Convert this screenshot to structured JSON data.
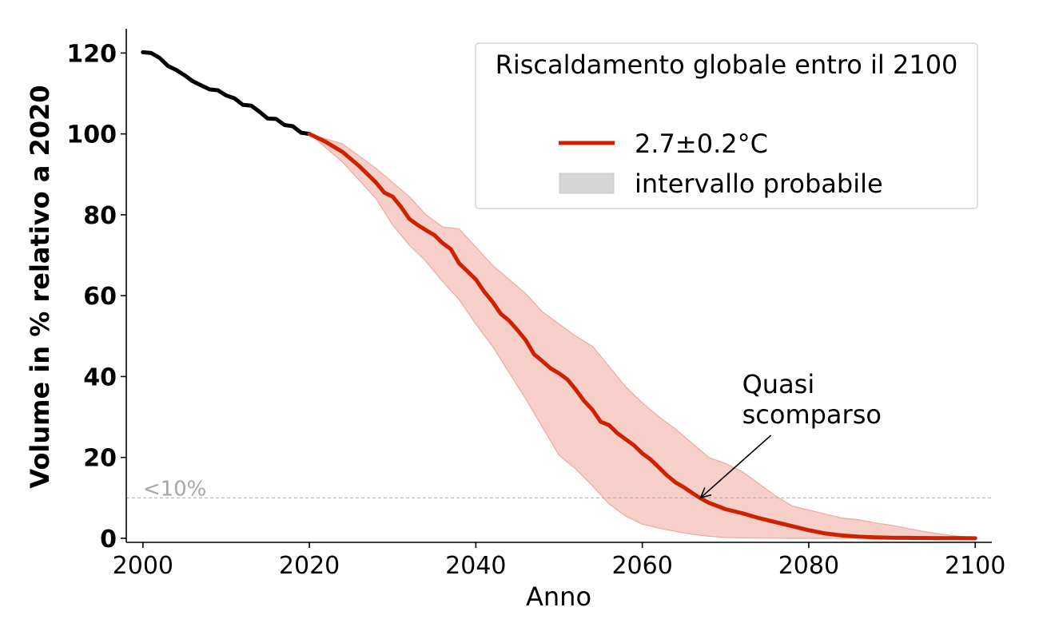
{
  "chart_data": {
    "type": "line",
    "xlabel": "Anno",
    "ylabel": "Volume in % relativo a 2020",
    "xlim": [
      1998,
      2102
    ],
    "ylim": [
      -1,
      126
    ],
    "xticks": [
      2000,
      2020,
      2040,
      2060,
      2080,
      2100
    ],
    "yticks": [
      0,
      20,
      40,
      60,
      80,
      100,
      120
    ],
    "grid": false,
    "legend": {
      "title": "Riscaldamento globale entro il 2100",
      "position": "top-right",
      "entries": [
        {
          "label": "2.7±0.2°C",
          "kind": "line",
          "color": "#cc2200"
        },
        {
          "label": "intervallo probabile",
          "kind": "patch",
          "color": "#d6d6d6"
        }
      ]
    },
    "reference_line": {
      "y": 10,
      "label": "<10%",
      "color": "#b3b3b3"
    },
    "annotation": {
      "text_lines": [
        "Quasi",
        "scomparso"
      ],
      "point": [
        2067,
        10
      ],
      "text_at": [
        2072,
        31
      ]
    },
    "series": [
      {
        "name": "historical",
        "color": "#000000",
        "x": [
          2000,
          2001,
          2002,
          2003,
          2004,
          2005,
          2006,
          2007,
          2008,
          2009,
          2010,
          2011,
          2012,
          2013,
          2014,
          2015,
          2016,
          2017,
          2018,
          2019,
          2020
        ],
        "values": [
          120.2,
          120,
          118.8,
          116.8,
          115.8,
          114.5,
          113,
          112,
          111,
          110.8,
          109.5,
          108.8,
          107.2,
          107,
          105.5,
          103.8,
          103.7,
          102.2,
          101.9,
          100.3,
          100
        ]
      },
      {
        "name": "2.7±0.2°C",
        "color": "#cc2200",
        "x": [
          2020,
          2022,
          2024,
          2026,
          2028,
          2029,
          2030,
          2031,
          2032,
          2033,
          2034,
          2035,
          2036,
          2037,
          2038,
          2039,
          2040,
          2041,
          2042,
          2043,
          2044,
          2045,
          2046,
          2047,
          2048,
          2049,
          2050,
          2051,
          2052,
          2053,
          2054,
          2055,
          2056,
          2057,
          2058,
          2059,
          2060,
          2061,
          2062,
          2063,
          2064,
          2065,
          2066,
          2067,
          2068,
          2070,
          2072,
          2074,
          2076,
          2078,
          2080,
          2082,
          2084,
          2086,
          2088,
          2090,
          2092,
          2094,
          2096,
          2098,
          2100
        ],
        "values": [
          100,
          98,
          95.5,
          92,
          88,
          85.5,
          84.5,
          82,
          79,
          77.5,
          76.2,
          75,
          73,
          71.5,
          68,
          66,
          64,
          61,
          58.5,
          55.5,
          53.8,
          51.5,
          49,
          45.5,
          43.8,
          42,
          40.8,
          39.3,
          36.8,
          34,
          31.8,
          28.8,
          28,
          26,
          24.5,
          23,
          21,
          19.5,
          17.5,
          15.5,
          13.8,
          12.6,
          11.2,
          9.9,
          8.8,
          7.2,
          6.2,
          5,
          4,
          3,
          2,
          1.2,
          0.7,
          0.4,
          0.25,
          0.15,
          0.1,
          0.07,
          0.05,
          0.03,
          0
        ]
      }
    ],
    "band": {
      "name": "intervallo probabile",
      "color": "#f6cfc8",
      "edge_color": "#ebaaa1",
      "x": [
        2020,
        2024,
        2028,
        2030,
        2032,
        2034,
        2036,
        2038,
        2040,
        2042,
        2044,
        2046,
        2048,
        2050,
        2052,
        2054,
        2056,
        2058,
        2060,
        2062,
        2064,
        2066,
        2068,
        2070,
        2072,
        2074,
        2076,
        2078,
        2080,
        2082,
        2084,
        2086,
        2088,
        2090,
        2092,
        2094,
        2096,
        2098,
        2100
      ],
      "upper": [
        100,
        97.5,
        91.5,
        88,
        84.5,
        80,
        77,
        76.5,
        72,
        67.5,
        64,
        60.5,
        56,
        53,
        50,
        47.5,
        42.5,
        37.5,
        33.5,
        30,
        27,
        23.5,
        20,
        18.5,
        16.5,
        13.5,
        10.5,
        8,
        7,
        6,
        5,
        4.6,
        3.8,
        3.2,
        2.4,
        1.6,
        1,
        0.5,
        0.2
      ],
      "lower": [
        100,
        93,
        84,
        77.5,
        72.5,
        68.5,
        63.5,
        59,
        53,
        47.5,
        41,
        34.5,
        27.5,
        20.5,
        17.2,
        13,
        8.5,
        5.5,
        3.5,
        2.5,
        1.7,
        1,
        0.5,
        0.2,
        0.1,
        0.05,
        0.02,
        0,
        0,
        0,
        0,
        0,
        0,
        0,
        0,
        0,
        0,
        0,
        0
      ]
    }
  }
}
